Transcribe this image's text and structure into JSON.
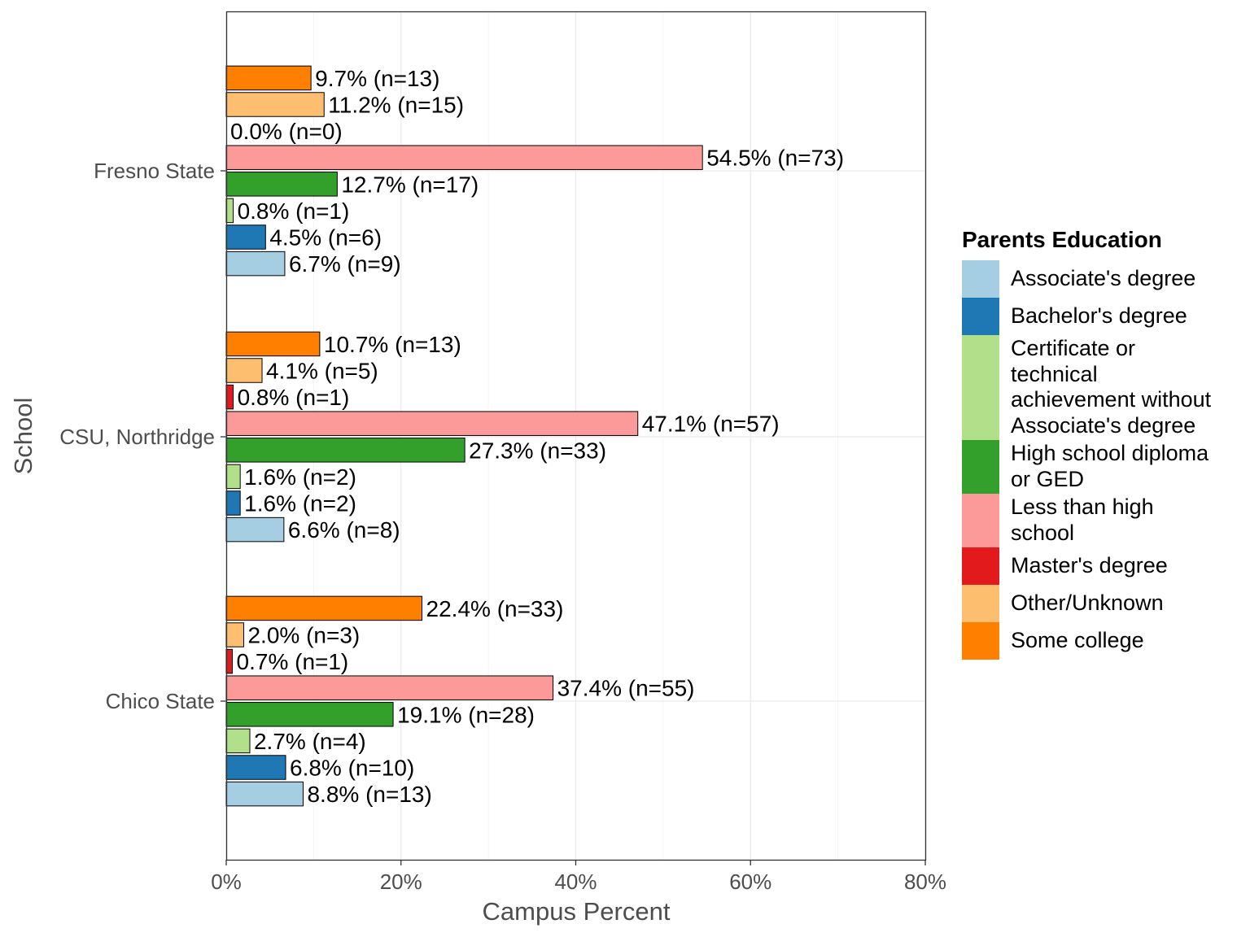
{
  "chart_data": {
    "type": "bar",
    "orientation": "horizontal",
    "xlabel": "Campus Percent",
    "ylabel": "School",
    "xlim": [
      0,
      80
    ],
    "x_ticks": [
      "0%",
      "20%",
      "40%",
      "60%",
      "80%"
    ],
    "x_tick_values": [
      0,
      20,
      40,
      60,
      80
    ],
    "grid": true,
    "legend_placement": "right",
    "categories": [
      "Fresno State",
      "CSU, Northridge",
      "Chico State"
    ],
    "series": [
      {
        "name": "Associate's degree",
        "color": "#A6CEE3",
        "values": [
          6.7,
          6.6,
          8.8
        ],
        "labels": [
          "6.7% (n=9)",
          "6.6% (n=8)",
          "8.8% (n=13)"
        ]
      },
      {
        "name": "Bachelor's degree",
        "color": "#1F78B4",
        "values": [
          4.5,
          1.6,
          6.8
        ],
        "labels": [
          "4.5% (n=6)",
          "1.6% (n=2)",
          "6.8% (n=10)"
        ]
      },
      {
        "name": "Certificate or technical achievement without Associate's degree",
        "color": "#B2DF8A",
        "values": [
          0.8,
          1.6,
          2.7
        ],
        "labels": [
          "0.8% (n=1)",
          "1.6% (n=2)",
          "2.7% (n=4)"
        ]
      },
      {
        "name": "High school diploma or GED",
        "color": "#33A02C",
        "values": [
          12.7,
          27.3,
          19.1
        ],
        "labels": [
          "12.7% (n=17)",
          "27.3% (n=33)",
          "19.1% (n=28)"
        ]
      },
      {
        "name": "Less than high school",
        "color": "#FB9A99",
        "values": [
          54.5,
          47.1,
          37.4
        ],
        "labels": [
          "54.5% (n=73)",
          "47.1% (n=57)",
          "37.4% (n=55)"
        ]
      },
      {
        "name": "Master's degree",
        "color": "#E31A1C",
        "values": [
          0.0,
          0.8,
          0.7
        ],
        "labels": [
          "0.0% (n=0)",
          "0.8% (n=1)",
          "0.7% (n=1)"
        ]
      },
      {
        "name": "Other/Unknown",
        "color": "#FDBF6F",
        "values": [
          11.2,
          4.1,
          2.0
        ],
        "labels": [
          "11.2% (n=15)",
          "4.1% (n=5)",
          "2.0% (n=3)"
        ]
      },
      {
        "name": "Some college",
        "color": "#FF7F00",
        "values": [
          9.7,
          10.7,
          22.4
        ],
        "labels": [
          "9.7% (n=13)",
          "10.7% (n=13)",
          "22.4% (n=33)"
        ]
      }
    ]
  },
  "legend": {
    "title": "Parents Education",
    "items": [
      {
        "lines": [
          "Associate's degree"
        ],
        "color": "#A6CEE3"
      },
      {
        "lines": [
          "Bachelor's degree"
        ],
        "color": "#1F78B4"
      },
      {
        "lines": [
          "Certificate or",
          "technical",
          "achievement without",
          "Associate's degree"
        ],
        "color": "#B2DF8A"
      },
      {
        "lines": [
          "High school diploma",
          "or GED"
        ],
        "color": "#33A02C"
      },
      {
        "lines": [
          "Less than high",
          "school"
        ],
        "color": "#FB9A99"
      },
      {
        "lines": [
          "Master's degree"
        ],
        "color": "#E31A1C"
      },
      {
        "lines": [
          "Other/Unknown"
        ],
        "color": "#FDBF6F"
      },
      {
        "lines": [
          "Some college"
        ],
        "color": "#FF7F00"
      }
    ]
  }
}
